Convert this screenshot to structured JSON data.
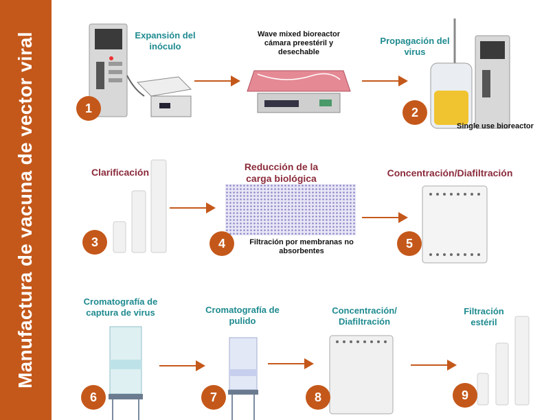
{
  "sidebar": {
    "title": "Manufactura de vacuna de vector viral"
  },
  "steps": {
    "s1": {
      "number": "1",
      "label": "Expansión del inóculo"
    },
    "s2": {
      "number": "2",
      "label": "Propagación del virus",
      "caption": "Single use bioreactor"
    },
    "wave": {
      "label": "Wave mixed bioreactor cámara preestéril y desechable"
    },
    "s3": {
      "number": "3",
      "label": "Clarificación"
    },
    "s4": {
      "number": "4",
      "label": "Reducción de la carga biológica",
      "caption": "Filtración por membranas no absorbentes"
    },
    "s5": {
      "number": "5",
      "label": "Concentración/Diafiltración"
    },
    "s6": {
      "number": "6",
      "label": "Cromatografía de captura de virus"
    },
    "s7": {
      "number": "7",
      "label": "Cromatografía de pulido"
    },
    "s8": {
      "number": "8",
      "label": "Concentración/ Diafiltración"
    },
    "s9": {
      "number": "9",
      "label": "Filtración estéril"
    }
  },
  "colors": {
    "accent": "#c4581a",
    "teal": "#1e8a8f",
    "maroon": "#8a2a3a"
  }
}
